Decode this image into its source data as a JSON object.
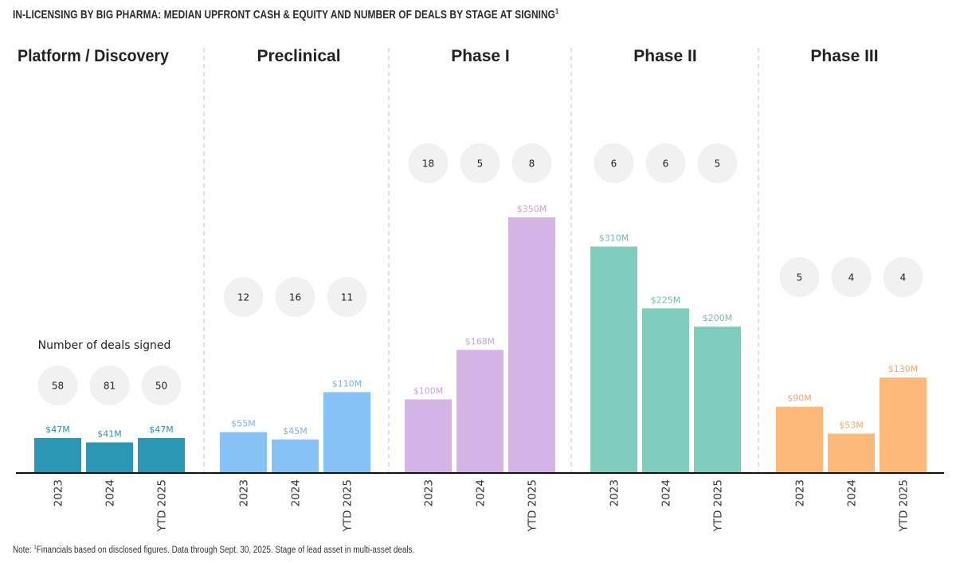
{
  "chart_data": {
    "type": "bar",
    "title": "IN-LICENSING BY BIG PHARMA: MEDIAN UPFRONT CASH & EQUITY AND NUMBER OF DEALS BY STAGE AT SIGNING",
    "title_footnote_mark": "1",
    "categories": [
      "2023",
      "2024",
      "YTD 2025"
    ],
    "unit": "$M",
    "deals_label": "Number of deals signed",
    "groups": [
      {
        "name": "Platform / Discovery",
        "color": "#2a98b4",
        "label_color": "#2a8fa8",
        "values": [
          47,
          41,
          47
        ],
        "labels": [
          "$47M",
          "$41M",
          "$47M"
        ],
        "deals": [
          "58",
          "81",
          "50"
        ]
      },
      {
        "name": "Preclinical",
        "color": "#85c3f7",
        "label_color": "#79b4e6",
        "values": [
          55,
          45,
          110
        ],
        "labels": [
          "$55M",
          "$45M",
          "$110M"
        ],
        "deals": [
          "12",
          "16",
          "11"
        ]
      },
      {
        "name": "Phase I",
        "color": "#d5b4e6",
        "label_color": "#c9a4dd",
        "values": [
          100,
          168,
          350
        ],
        "labels": [
          "$100M",
          "$168M",
          "$350M"
        ],
        "deals": [
          "18",
          "5",
          "8"
        ]
      },
      {
        "name": "Phase II",
        "color": "#7fcdbb",
        "label_color": "#6fbfab",
        "values": [
          310,
          225,
          200
        ],
        "labels": [
          "$310M",
          "$225M",
          "$200M"
        ],
        "deals": [
          "6",
          "6",
          "5"
        ]
      },
      {
        "name": "Phase III",
        "color": "#fdb97a",
        "label_color": "#f4aa68",
        "values": [
          90,
          53,
          130
        ],
        "labels": [
          "$90M",
          "$53M",
          "$130M"
        ],
        "deals": [
          "5",
          "4",
          "4"
        ]
      }
    ],
    "ylim": [
      0,
      350
    ],
    "grid": false,
    "circle_color": "#f1f1f1",
    "axis_color": "#111111"
  },
  "note": {
    "prefix": "Note: ",
    "mark": "1",
    "text": "Financials based on disclosed figures. Data through Sept. 30, 2025. Stage of lead asset in multi-asset deals."
  }
}
